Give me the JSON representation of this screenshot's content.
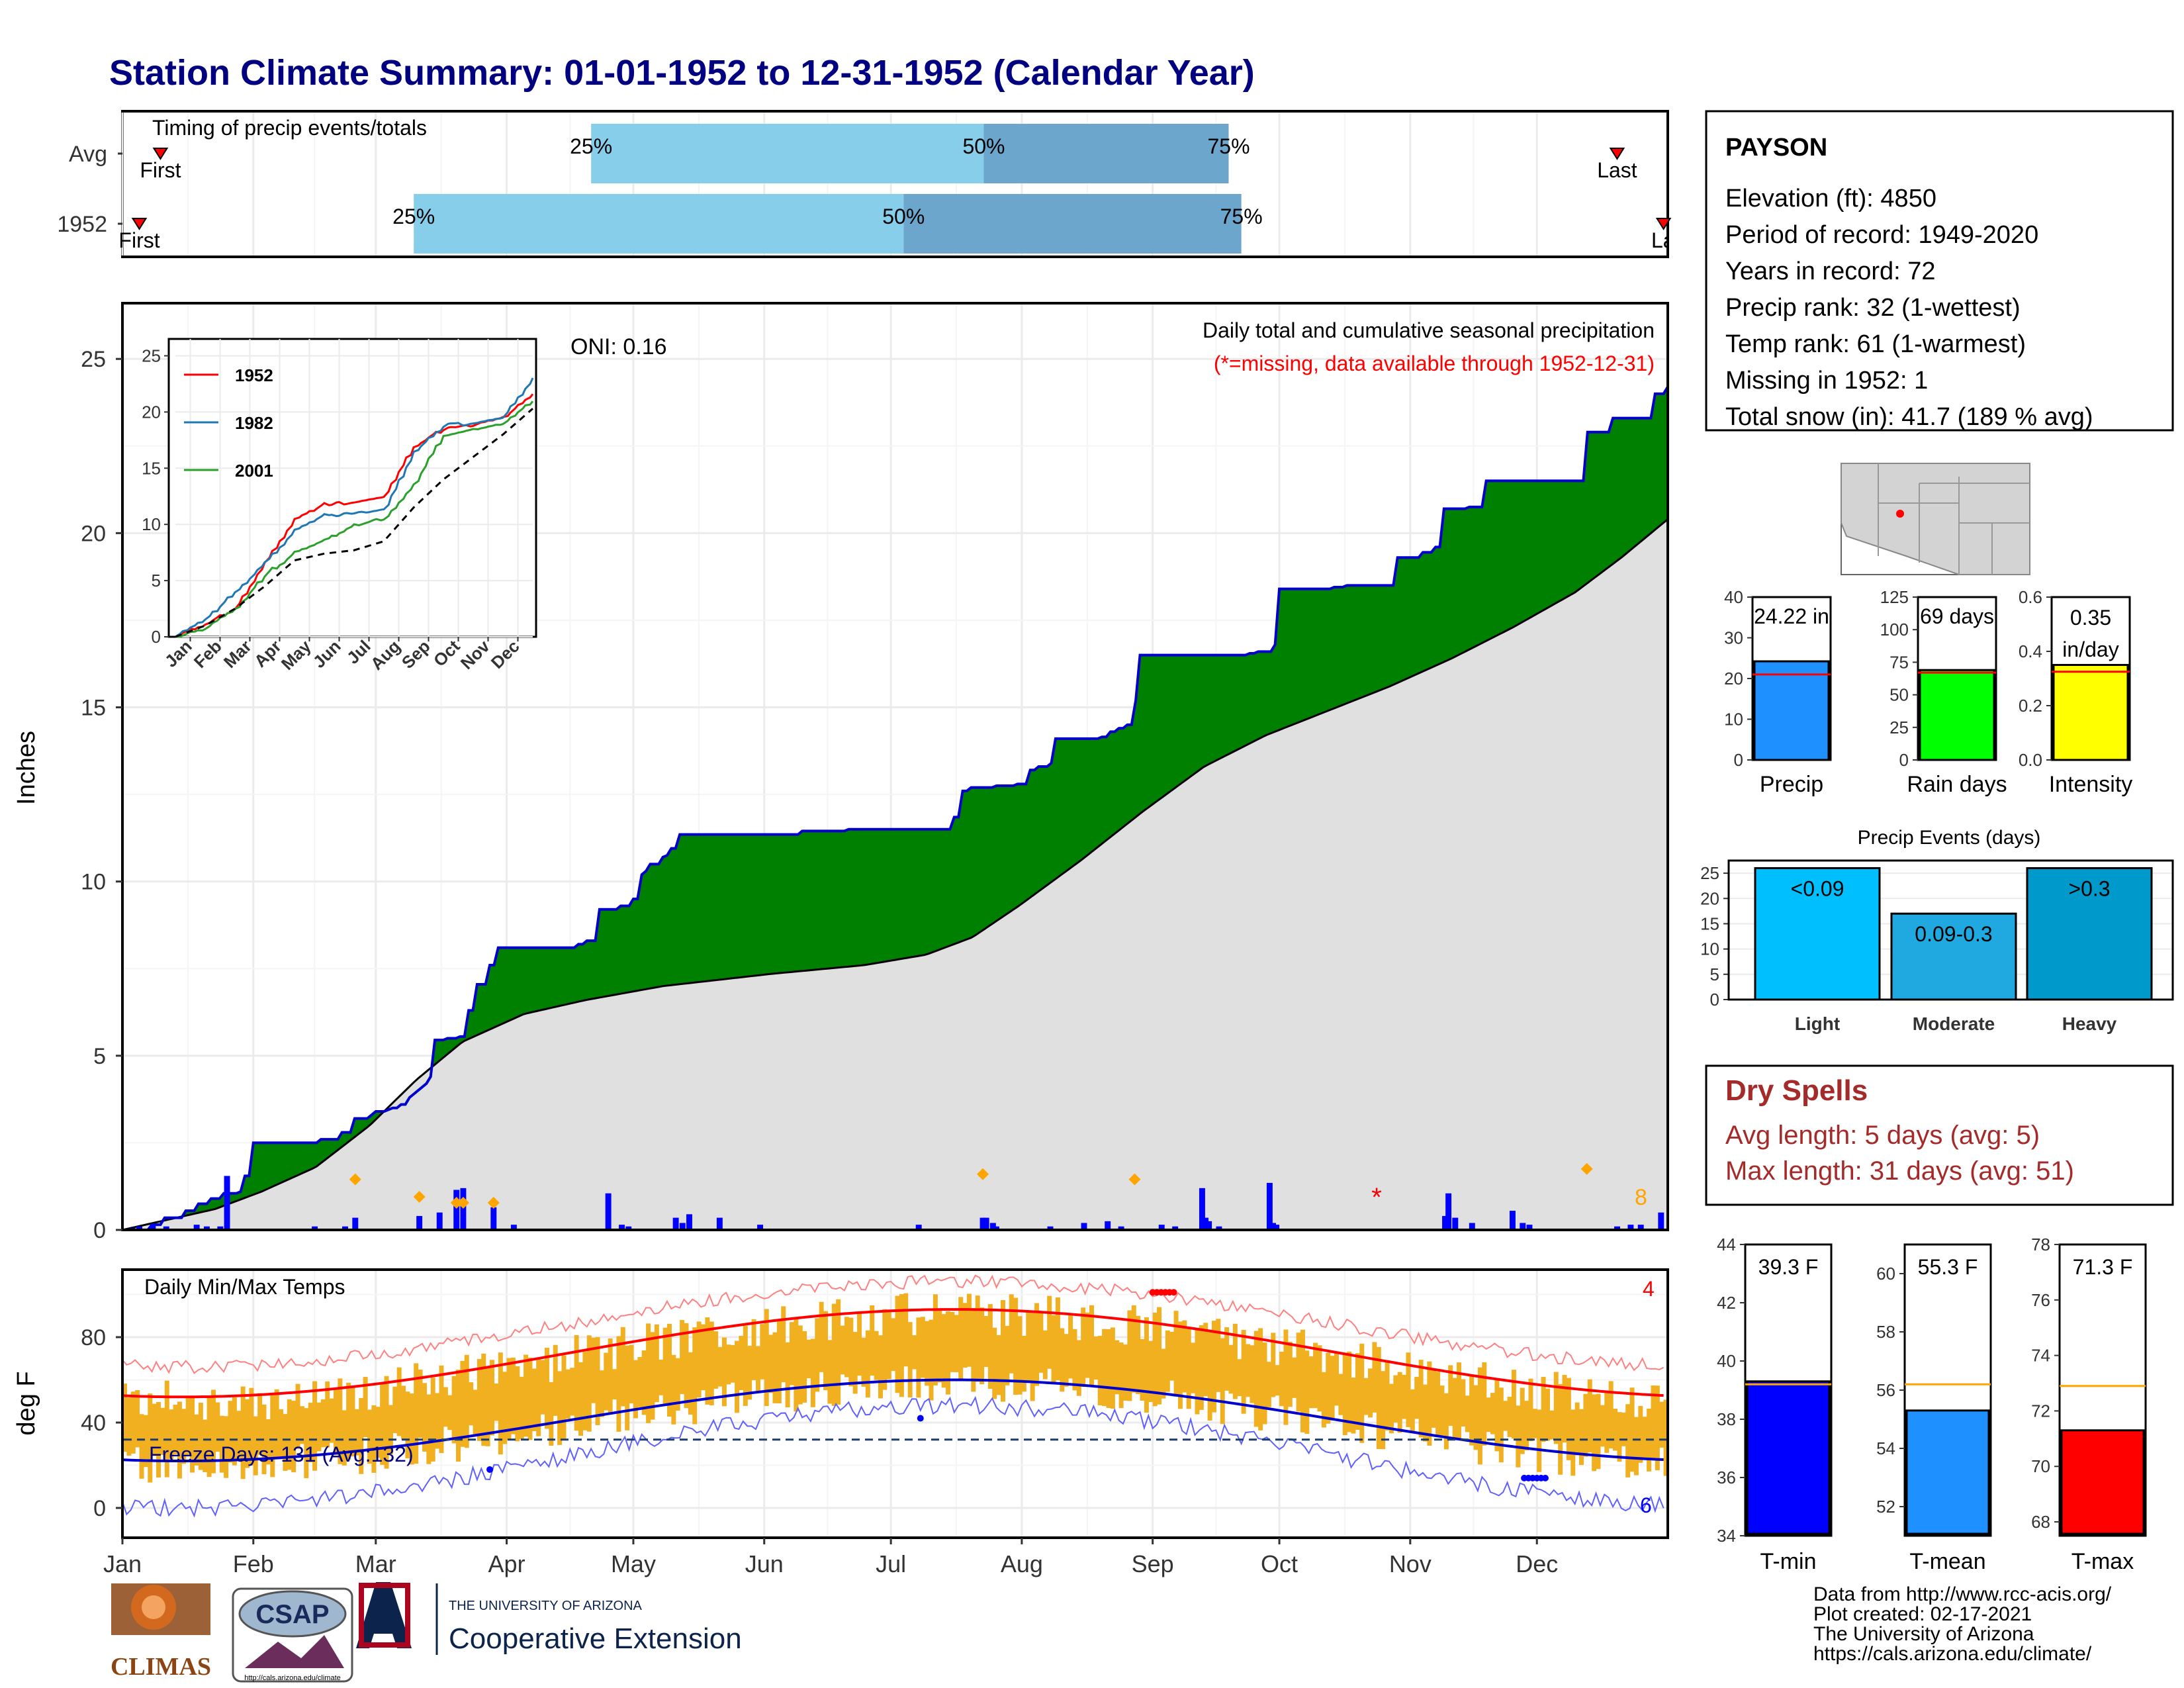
{
  "title": "Station Climate Summary: 01-01-1952 to 12-31-1952 (Calendar Year)",
  "colors": {
    "title": "#000080",
    "precip_area": "#008000",
    "normal_area": "#e0e0e0",
    "cum_line": "#0000cd",
    "daily_bar": "#0000ff",
    "tmax_line": "#ff0000",
    "tmin_line": "#0000cd",
    "temp_bar": "#f0b020",
    "q1": "#87ceeb",
    "q2": "#6ca6cd",
    "dry": "#a52a2a"
  },
  "timing_panel": {
    "label": "Timing of precip events/totals",
    "rows": [
      {
        "name": "Avg",
        "first_label": "First",
        "last_label": "Last",
        "q_labels": [
          "25%",
          "50%",
          "75%"
        ],
        "first_doy": 10,
        "q25_doy": 112,
        "q50_doy": 205,
        "q75_doy": 263,
        "last_doy": 355
      },
      {
        "name": "1952",
        "first_label": "First",
        "last_label": "Last",
        "q_labels": [
          "25%",
          "50%",
          "75%"
        ],
        "first_doy": 5,
        "q25_doy": 70,
        "q50_doy": 186,
        "q75_doy": 266,
        "last_doy": 366
      }
    ]
  },
  "precip_panel": {
    "caption": "Daily total and cumulative seasonal precipitation",
    "missing_note": "(*=missing, data available through 1952-12-31)",
    "oni_label": "ONI: 0.16",
    "ylabel": "Inches",
    "yticks": [
      "0",
      "5",
      "10",
      "15",
      "20",
      "25"
    ],
    "count_label": "8"
  },
  "inset": {
    "xticks": [
      "Jan",
      "Feb",
      "Mar",
      "Apr",
      "May",
      "Jun",
      "Jul",
      "Aug",
      "Sep",
      "Oct",
      "Nov",
      "Dec"
    ],
    "yticks": [
      "0",
      "5",
      "10",
      "15",
      "20",
      "25"
    ],
    "legend": [
      "1952",
      "1982",
      "2001"
    ],
    "colors": [
      "#ff0000",
      "#1f77b4",
      "#2ca02c"
    ]
  },
  "temp_panel": {
    "caption": "Daily Min/Max Temps",
    "freeze_label": "Freeze Days: 131 (Avg:132)",
    "ylabel": "deg F",
    "yticks": [
      "0",
      "40",
      "80"
    ],
    "top_count": "4",
    "bottom_count": "6"
  },
  "months": [
    "Jan",
    "Feb",
    "Mar",
    "Apr",
    "May",
    "Jun",
    "Jul",
    "Aug",
    "Sep",
    "Oct",
    "Nov",
    "Dec"
  ],
  "station": {
    "name": "PAYSON",
    "lines": [
      "Elevation (ft): 4850",
      "Period of record: 1949-2020",
      "Years in record: 72",
      "Precip rank: 32 (1-wettest)",
      "Temp rank: 61 (1-warmest)",
      "Missing in 1952: 1",
      "Total snow (in): 41.7 (189 % avg)"
    ]
  },
  "precip_summary": [
    {
      "label": "Precip",
      "value_text": "24.22 in",
      "value": 24.22,
      "avg": 21,
      "ymax": 40,
      "yticks": [
        "0",
        "10",
        "20",
        "30",
        "40"
      ],
      "color": "#1e90ff"
    },
    {
      "label": "Rain days",
      "value_text": "69 days",
      "value": 69,
      "avg": 67,
      "ymax": 125,
      "yticks": [
        "0",
        "25",
        "50",
        "75",
        "100",
        "125"
      ],
      "color": "#00ff00"
    },
    {
      "label": "Intensity",
      "value_text_1": "0.35",
      "value_text_2": "in/day",
      "value": 0.35,
      "avg": 0.325,
      "ymax": 0.6,
      "yticks": [
        "0.0",
        "0.2",
        "0.4",
        "0.6"
      ],
      "color": "#ffff00"
    }
  ],
  "events": {
    "title": "Precip Events (days)",
    "yticks": [
      "0",
      "5",
      "10",
      "15",
      "20",
      "25"
    ],
    "bars": [
      {
        "label": "Light",
        "text": "<0.09",
        "value": 26,
        "color": "#00bfff"
      },
      {
        "label": "Moderate",
        "text": "0.09-0.3",
        "value": 17,
        "color": "#1fa9e0"
      },
      {
        "label": "Heavy",
        "text": ">0.3",
        "value": 26,
        "color": "#0099cc"
      }
    ]
  },
  "dry_spells": {
    "title": "Dry Spells",
    "lines": [
      "Avg length: 5 days (avg: 5)",
      "Max length: 31 days (avg: 51)"
    ]
  },
  "temp_summary": [
    {
      "label": "T-min",
      "value_text": "39.3 F",
      "value": 39.3,
      "avg": 39.2,
      "ylim": [
        34,
        44
      ],
      "yticks": [
        "34",
        "36",
        "38",
        "40",
        "42",
        "44"
      ],
      "color": "#0000ff"
    },
    {
      "label": "T-mean",
      "value_text": "55.3 F",
      "value": 55.3,
      "avg": 56.2,
      "ylim": [
        51,
        61
      ],
      "yticks": [
        "52",
        "54",
        "56",
        "58",
        "60"
      ],
      "color": "#1e90ff"
    },
    {
      "label": "T-max",
      "value_text": "71.3 F",
      "value": 71.3,
      "avg": 72.9,
      "ylim": [
        67.5,
        78
      ],
      "yticks": [
        "68",
        "70",
        "72",
        "74",
        "76",
        "78"
      ],
      "color": "#ff0000"
    }
  ],
  "credits": [
    "Data from http://www.rcc-acis.org/",
    "Plot created: 02-17-2021",
    "The University of Arizona",
    "https://cals.arizona.edu/climate/"
  ],
  "logos": {
    "climas": "CLIMAS",
    "csap": "CSAP",
    "csap_url": "http://cals.arizona.edu/climate",
    "ua_small": "THE UNIVERSITY OF ARIZONA",
    "ua_large": "Cooperative Extension"
  }
}
